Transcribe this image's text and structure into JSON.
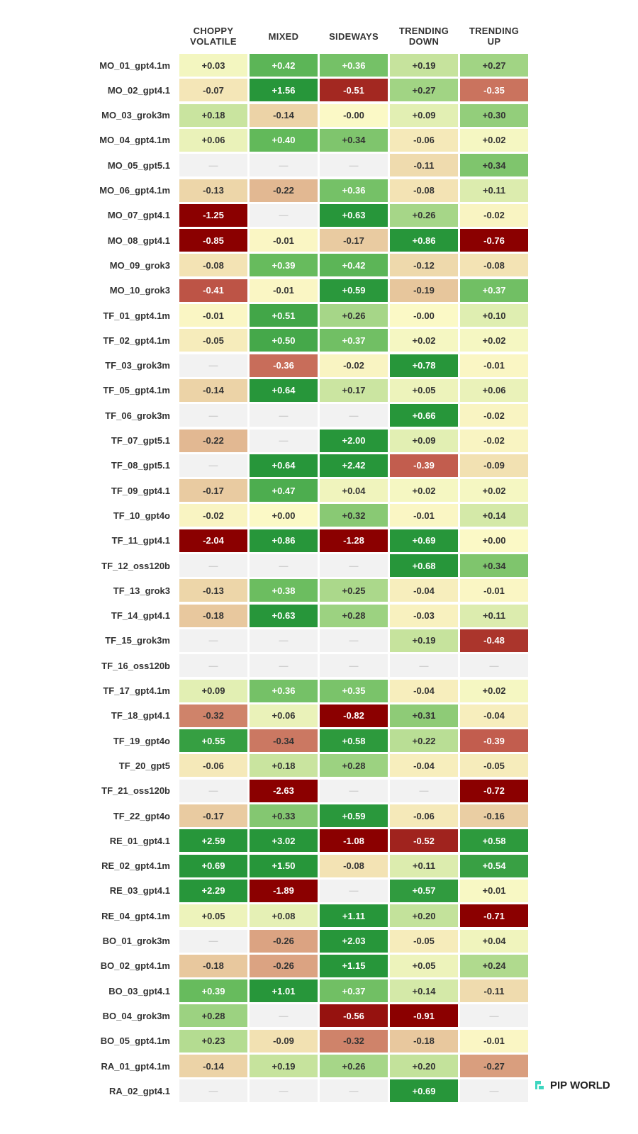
{
  "chart_data": {
    "type": "heatmap",
    "x": [
      "CHOPPY VOLATILE",
      "MIXED",
      "SIDEWAYS",
      "TRENDING DOWN",
      "TRENDING UP"
    ],
    "y": [
      "MO_01_gpt4.1m",
      "MO_02_gpt4.1",
      "MO_03_grok3m",
      "MO_04_gpt4.1m",
      "MO_05_gpt5.1",
      "MO_06_gpt4.1m",
      "MO_07_gpt4.1",
      "MO_08_gpt4.1",
      "MO_09_grok3",
      "MO_10_grok3",
      "TF_01_gpt4.1m",
      "TF_02_gpt4.1m",
      "TF_03_grok3m",
      "TF_05_gpt4.1m",
      "TF_06_grok3m",
      "TF_07_gpt5.1",
      "TF_08_gpt5.1",
      "TF_09_gpt4.1",
      "TF_10_gpt4o",
      "TF_11_gpt4.1",
      "TF_12_oss120b",
      "TF_13_grok3",
      "TF_14_gpt4.1",
      "TF_15_grok3m",
      "TF_16_oss120b",
      "TF_17_gpt4.1m",
      "TF_18_gpt4.1",
      "TF_19_gpt4o",
      "TF_20_gpt5",
      "TF_21_oss120b",
      "TF_22_gpt4o",
      "RE_01_gpt4.1",
      "RE_02_gpt4.1m",
      "RE_03_gpt4.1",
      "RE_04_gpt4.1m",
      "BO_01_grok3m",
      "BO_02_gpt4.1m",
      "BO_03_gpt4.1",
      "BO_04_grok3m",
      "BO_05_gpt4.1m",
      "RA_01_gpt4.1m",
      "RA_02_gpt4.1"
    ],
    "values": [
      [
        0.03,
        0.42,
        0.36,
        0.19,
        0.27
      ],
      [
        -0.07,
        1.56,
        -0.51,
        0.27,
        -0.35
      ],
      [
        0.18,
        -0.14,
        0,
        0.09,
        0.3
      ],
      [
        0.06,
        0.4,
        0.34,
        -0.06,
        0.02
      ],
      [
        null,
        null,
        null,
        -0.11,
        0.34
      ],
      [
        -0.13,
        -0.22,
        0.36,
        -0.08,
        0.11
      ],
      [
        -1.25,
        null,
        0.63,
        0.26,
        -0.02
      ],
      [
        -0.85,
        -0.01,
        -0.17,
        0.86,
        -0.76
      ],
      [
        -0.08,
        0.39,
        0.42,
        -0.12,
        -0.08
      ],
      [
        -0.41,
        -0.01,
        0.59,
        -0.19,
        0.37
      ],
      [
        -0.01,
        0.51,
        0.26,
        0,
        0.1
      ],
      [
        -0.05,
        0.5,
        0.37,
        0.02,
        0.02
      ],
      [
        null,
        -0.36,
        -0.02,
        0.78,
        -0.01
      ],
      [
        -0.14,
        0.64,
        0.17,
        0.05,
        0.06
      ],
      [
        null,
        null,
        null,
        0.66,
        -0.02
      ],
      [
        -0.22,
        null,
        2.0,
        0.09,
        -0.02
      ],
      [
        null,
        0.64,
        2.42,
        -0.39,
        -0.09
      ],
      [
        -0.17,
        0.47,
        0.04,
        0.02,
        0.02
      ],
      [
        -0.02,
        0,
        0.32,
        -0.01,
        0.14
      ],
      [
        -2.04,
        0.86,
        -1.28,
        0.69,
        0
      ],
      [
        null,
        null,
        null,
        0.68,
        0.34
      ],
      [
        -0.13,
        0.38,
        0.25,
        -0.04,
        -0.01
      ],
      [
        -0.18,
        0.63,
        0.28,
        -0.03,
        0.11
      ],
      [
        null,
        null,
        null,
        0.19,
        -0.48
      ],
      [
        null,
        null,
        null,
        null,
        null
      ],
      [
        0.09,
        0.36,
        0.35,
        -0.04,
        0.02
      ],
      [
        -0.32,
        0.06,
        -0.82,
        0.31,
        -0.04
      ],
      [
        0.55,
        -0.34,
        0.58,
        0.22,
        -0.39
      ],
      [
        -0.06,
        0.18,
        0.28,
        -0.04,
        -0.05
      ],
      [
        null,
        -2.63,
        null,
        null,
        -0.72
      ],
      [
        -0.17,
        0.33,
        0.59,
        -0.06,
        -0.16
      ],
      [
        2.59,
        3.02,
        -1.08,
        -0.52,
        0.58
      ],
      [
        0.69,
        1.5,
        -0.08,
        0.11,
        0.54
      ],
      [
        2.29,
        -1.89,
        null,
        0.57,
        0.01
      ],
      [
        0.05,
        0.08,
        1.11,
        0.2,
        -0.71
      ],
      [
        null,
        -0.26,
        2.03,
        -0.05,
        0.04
      ],
      [
        -0.18,
        -0.26,
        1.15,
        0.05,
        0.24
      ],
      [
        0.39,
        1.01,
        0.37,
        0.14,
        -0.11
      ],
      [
        0.28,
        null,
        -0.56,
        -0.91,
        null
      ],
      [
        0.23,
        -0.09,
        -0.32,
        -0.18,
        -0.01
      ],
      [
        -0.14,
        0.19,
        0.26,
        0.2,
        -0.27
      ],
      [
        null,
        null,
        null,
        0.69,
        null
      ]
    ],
    "value_labels": [
      [
        "+0.03",
        "+0.42",
        "+0.36",
        "+0.19",
        "+0.27"
      ],
      [
        "-0.07",
        "+1.56",
        "-0.51",
        "+0.27",
        "-0.35"
      ],
      [
        "+0.18",
        "-0.14",
        "-0.00",
        "+0.09",
        "+0.30"
      ],
      [
        "+0.06",
        "+0.40",
        "+0.34",
        "-0.06",
        "+0.02"
      ],
      [
        "—",
        "—",
        "—",
        "-0.11",
        "+0.34"
      ],
      [
        "-0.13",
        "-0.22",
        "+0.36",
        "-0.08",
        "+0.11"
      ],
      [
        "-1.25",
        "—",
        "+0.63",
        "+0.26",
        "-0.02"
      ],
      [
        "-0.85",
        "-0.01",
        "-0.17",
        "+0.86",
        "-0.76"
      ],
      [
        "-0.08",
        "+0.39",
        "+0.42",
        "-0.12",
        "-0.08"
      ],
      [
        "-0.41",
        "-0.01",
        "+0.59",
        "-0.19",
        "+0.37"
      ],
      [
        "-0.01",
        "+0.51",
        "+0.26",
        "-0.00",
        "+0.10"
      ],
      [
        "-0.05",
        "+0.50",
        "+0.37",
        "+0.02",
        "+0.02"
      ],
      [
        "—",
        "-0.36",
        "-0.02",
        "+0.78",
        "-0.01"
      ],
      [
        "-0.14",
        "+0.64",
        "+0.17",
        "+0.05",
        "+0.06"
      ],
      [
        "—",
        "—",
        "—",
        "+0.66",
        "-0.02"
      ],
      [
        "-0.22",
        "—",
        "+2.00",
        "+0.09",
        "-0.02"
      ],
      [
        "—",
        "+0.64",
        "+2.42",
        "-0.39",
        "-0.09"
      ],
      [
        "-0.17",
        "+0.47",
        "+0.04",
        "+0.02",
        "+0.02"
      ],
      [
        "-0.02",
        "+0.00",
        "+0.32",
        "-0.01",
        "+0.14"
      ],
      [
        "-2.04",
        "+0.86",
        "-1.28",
        "+0.69",
        "+0.00"
      ],
      [
        "—",
        "—",
        "—",
        "+0.68",
        "+0.34"
      ],
      [
        "-0.13",
        "+0.38",
        "+0.25",
        "-0.04",
        "-0.01"
      ],
      [
        "-0.18",
        "+0.63",
        "+0.28",
        "-0.03",
        "+0.11"
      ],
      [
        "—",
        "—",
        "—",
        "+0.19",
        "-0.48"
      ],
      [
        "—",
        "—",
        "—",
        "—",
        "—"
      ],
      [
        "+0.09",
        "+0.36",
        "+0.35",
        "-0.04",
        "+0.02"
      ],
      [
        "-0.32",
        "+0.06",
        "-0.82",
        "+0.31",
        "-0.04"
      ],
      [
        "+0.55",
        "-0.34",
        "+0.58",
        "+0.22",
        "-0.39"
      ],
      [
        "-0.06",
        "+0.18",
        "+0.28",
        "-0.04",
        "-0.05"
      ],
      [
        "—",
        "-2.63",
        "—",
        "—",
        "-0.72"
      ],
      [
        "-0.17",
        "+0.33",
        "+0.59",
        "-0.06",
        "-0.16"
      ],
      [
        "+2.59",
        "+3.02",
        "-1.08",
        "-0.52",
        "+0.58"
      ],
      [
        "+0.69",
        "+1.50",
        "-0.08",
        "+0.11",
        "+0.54"
      ],
      [
        "+2.29",
        "-1.89",
        "—",
        "+0.57",
        "+0.01"
      ],
      [
        "+0.05",
        "+0.08",
        "+1.11",
        "+0.20",
        "-0.71"
      ],
      [
        "—",
        "-0.26",
        "+2.03",
        "-0.05",
        "+0.04"
      ],
      [
        "-0.18",
        "-0.26",
        "+1.15",
        "+0.05",
        "+0.24"
      ],
      [
        "+0.39",
        "+1.01",
        "+0.37",
        "+0.14",
        "-0.11"
      ],
      [
        "+0.28",
        "—",
        "-0.56",
        "-0.91",
        "—"
      ],
      [
        "+0.23",
        "-0.09",
        "-0.32",
        "-0.18",
        "-0.01"
      ],
      [
        "-0.14",
        "+0.19",
        "+0.26",
        "+0.20",
        "-0.27"
      ],
      [
        "—",
        "—",
        "—",
        "+0.69",
        "—"
      ]
    ],
    "clim": [
      -0.6,
      0.6
    ],
    "colors": [
      "#8b0000",
      "#c0584a",
      "#e6c39a",
      "#fbf9c6",
      "#c3e29b",
      "#62b95a",
      "#27963a"
    ],
    "missing_color": "#f2f2f2"
  },
  "logo": {
    "text": "PIP WORLD"
  }
}
